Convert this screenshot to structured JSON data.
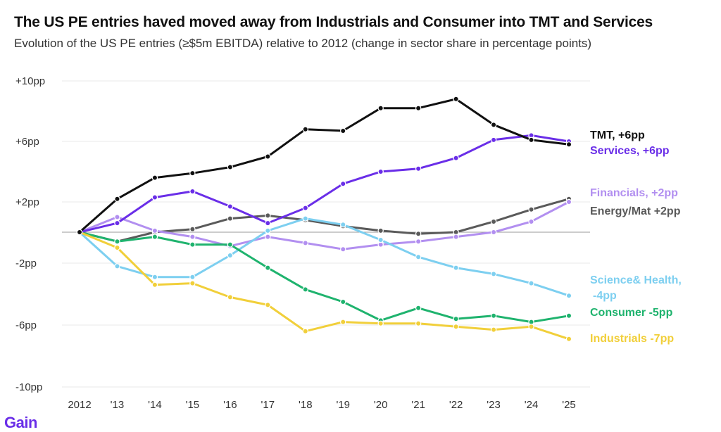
{
  "chart_data": {
    "type": "line",
    "title": "The US PE entries haved moved away from Industrials and Consumer into TMT and Services",
    "subtitle": "Evolution of the US PE entries (≥$5m EBITDA) relative to 2012 (change in sector share in percentage points)",
    "x": [
      "2012",
      "'13",
      "'14",
      "'15",
      "'16",
      "'17",
      "'18",
      "'19",
      "'20",
      "'21",
      "'22",
      "'23",
      "'24",
      "'25"
    ],
    "ylim": [
      -10,
      10
    ],
    "yticks": [
      {
        "value": 10,
        "label": "+10pp"
      },
      {
        "value": 6,
        "label": "+6pp"
      },
      {
        "value": 2,
        "label": "+2pp"
      },
      {
        "value": -2,
        "label": "-2pp"
      },
      {
        "value": -6,
        "label": "-6pp"
      },
      {
        "value": -10,
        "label": "-10pp"
      }
    ],
    "grid": true,
    "series": [
      {
        "name": "Energy/Mat",
        "label": "Energy/Mat +2pp",
        "color": "#5a5a5a",
        "values": [
          0,
          -0.6,
          0,
          0.2,
          0.9,
          1.1,
          0.8,
          0.4,
          0.1,
          -0.1,
          0,
          0.7,
          1.5,
          2.2
        ]
      },
      {
        "name": "Financials",
        "label": "Financials, +2pp",
        "color": "#b28ff0",
        "values": [
          0,
          1.0,
          0.1,
          -0.3,
          -0.9,
          -0.3,
          -0.7,
          -1.1,
          -0.8,
          -0.6,
          -0.3,
          0,
          0.7,
          2.0
        ]
      },
      {
        "name": "Science& Health",
        "label_lines": [
          "Science& Health,",
          "-4pp"
        ],
        "color": "#7dcff0",
        "values": [
          0,
          -2.2,
          -2.9,
          -2.9,
          -1.5,
          0.1,
          0.9,
          0.5,
          -0.5,
          -1.6,
          -2.3,
          -2.7,
          -3.3,
          -4.1
        ]
      },
      {
        "name": "Consumer",
        "label": "Consumer -5pp",
        "color": "#1fb36e",
        "values": [
          0,
          -0.6,
          -0.3,
          -0.8,
          -0.8,
          -2.3,
          -3.7,
          -4.5,
          -5.7,
          -4.9,
          -5.6,
          -5.4,
          -5.8,
          -5.4
        ]
      },
      {
        "name": "Industrials",
        "label": "Industrials -7pp",
        "color": "#f1cf3a",
        "values": [
          0,
          -1.0,
          -3.4,
          -3.3,
          -4.2,
          -4.7,
          -6.4,
          -5.8,
          -5.9,
          -5.9,
          -6.1,
          -6.3,
          -6.1,
          -6.9
        ]
      },
      {
        "name": "Services",
        "label": "Services, +6pp",
        "color": "#6a2ee8",
        "values": [
          0,
          0.6,
          2.3,
          2.7,
          1.7,
          0.6,
          1.6,
          3.2,
          4.0,
          4.2,
          4.9,
          6.1,
          6.4,
          6.0
        ]
      },
      {
        "name": "TMT",
        "label": "TMT, +6pp",
        "color": "#111111",
        "values": [
          0,
          2.2,
          3.6,
          3.9,
          4.3,
          5.0,
          6.8,
          6.7,
          8.2,
          8.2,
          8.8,
          7.1,
          6.1,
          5.8
        ]
      }
    ]
  },
  "brand": {
    "logo_text": "Gain",
    "color": "#6a2ee8"
  }
}
